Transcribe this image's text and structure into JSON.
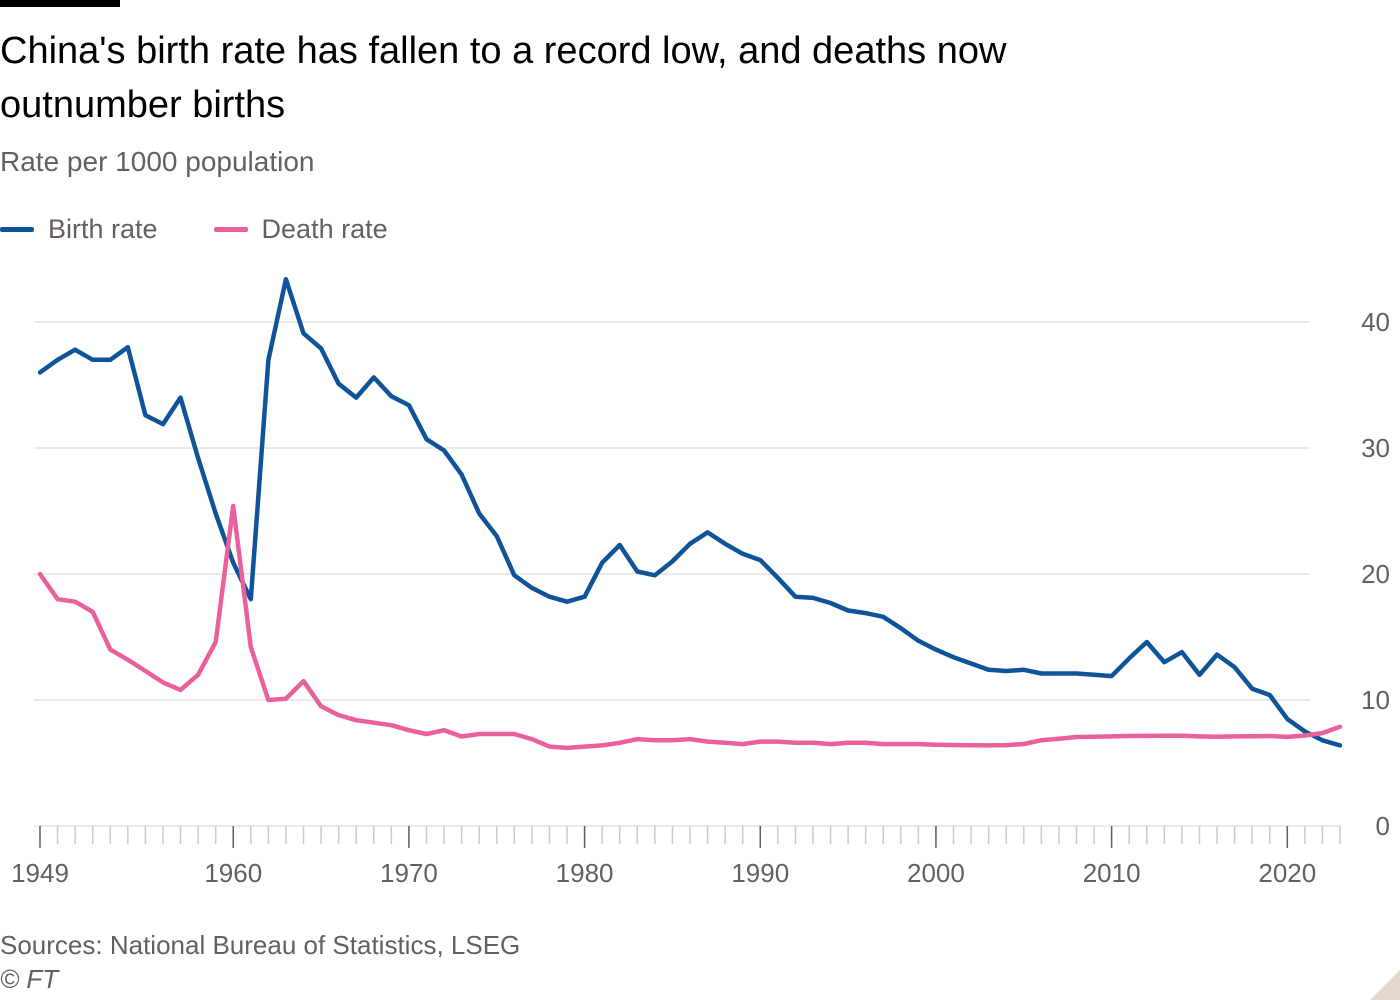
{
  "title": "China's birth rate has fallen to a record low, and deaths now outnumber births",
  "subtitle": "Rate per 1000 population",
  "source": "Sources: National Bureau of Statistics, LSEG",
  "credit": "© FT",
  "legend": [
    {
      "label": "Birth rate",
      "color": "#0f5499"
    },
    {
      "label": "Death rate",
      "color": "#e9609c"
    }
  ],
  "chart_data": {
    "type": "line",
    "y_axis_position": "right",
    "ylim": [
      0,
      45
    ],
    "yticks": [
      0,
      10,
      20,
      30,
      40
    ],
    "xlim": [
      1949,
      2023
    ],
    "xticks": [
      1949,
      1960,
      1970,
      1980,
      1990,
      2000,
      2010,
      2020
    ],
    "grid": true,
    "legend_position": "top-left",
    "x": [
      1949,
      1950,
      1951,
      1952,
      1953,
      1954,
      1955,
      1956,
      1957,
      1958,
      1959,
      1960,
      1961,
      1962,
      1963,
      1964,
      1965,
      1966,
      1967,
      1968,
      1969,
      1970,
      1971,
      1972,
      1973,
      1974,
      1975,
      1976,
      1977,
      1978,
      1979,
      1980,
      1981,
      1982,
      1983,
      1984,
      1985,
      1986,
      1987,
      1988,
      1989,
      1990,
      1991,
      1992,
      1993,
      1994,
      1995,
      1996,
      1997,
      1998,
      1999,
      2000,
      2001,
      2002,
      2003,
      2004,
      2005,
      2006,
      2007,
      2008,
      2009,
      2010,
      2011,
      2012,
      2013,
      2014,
      2015,
      2016,
      2017,
      2018,
      2019,
      2020,
      2021,
      2022,
      2023
    ],
    "series": [
      {
        "name": "Birth rate",
        "color": "#0f5499",
        "values": [
          36.0,
          37.0,
          37.8,
          37.0,
          37.0,
          38.0,
          32.6,
          31.9,
          34.0,
          29.2,
          24.8,
          20.9,
          18.0,
          37.0,
          43.4,
          39.1,
          37.9,
          35.1,
          34.0,
          35.6,
          34.1,
          33.4,
          30.7,
          29.8,
          27.9,
          24.8,
          23.0,
          19.9,
          18.9,
          18.2,
          17.8,
          18.2,
          20.9,
          22.3,
          20.2,
          19.9,
          21.0,
          22.4,
          23.3,
          22.4,
          21.6,
          21.1,
          19.7,
          18.2,
          18.1,
          17.7,
          17.1,
          16.9,
          16.6,
          15.7,
          14.7,
          14.0,
          13.4,
          12.9,
          12.4,
          12.3,
          12.4,
          12.1,
          12.1,
          12.1,
          12.0,
          11.9,
          13.3,
          14.6,
          13.0,
          13.8,
          12.0,
          13.6,
          12.6,
          10.9,
          10.4,
          8.5,
          7.5,
          6.8,
          6.4
        ]
      },
      {
        "name": "Death rate",
        "color": "#e9609c",
        "values": [
          20.0,
          18.0,
          17.8,
          17.0,
          14.0,
          13.2,
          12.3,
          11.4,
          10.8,
          12.0,
          14.6,
          25.4,
          14.2,
          10.0,
          10.1,
          11.5,
          9.5,
          8.8,
          8.4,
          8.2,
          8.0,
          7.6,
          7.3,
          7.6,
          7.1,
          7.3,
          7.3,
          7.3,
          6.9,
          6.3,
          6.2,
          6.3,
          6.4,
          6.6,
          6.9,
          6.8,
          6.8,
          6.9,
          6.7,
          6.6,
          6.5,
          6.7,
          6.7,
          6.6,
          6.6,
          6.5,
          6.6,
          6.6,
          6.5,
          6.5,
          6.5,
          6.45,
          6.43,
          6.41,
          6.4,
          6.42,
          6.51,
          6.81,
          6.93,
          7.06,
          7.08,
          7.11,
          7.14,
          7.15,
          7.16,
          7.16,
          7.11,
          7.09,
          7.11,
          7.13,
          7.14,
          7.07,
          7.18,
          7.37,
          7.87
        ]
      }
    ]
  }
}
